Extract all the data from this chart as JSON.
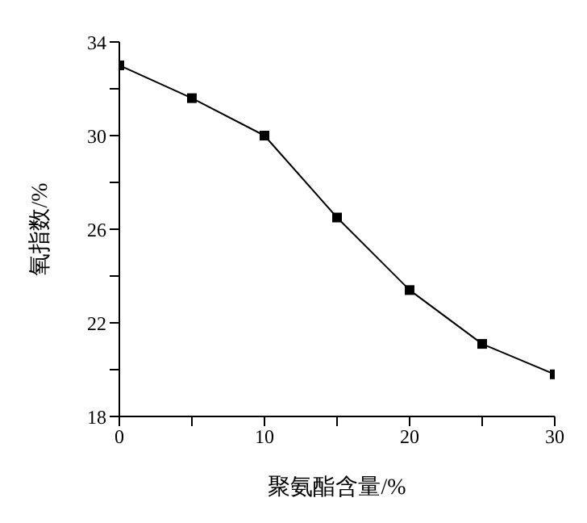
{
  "chart_data": {
    "type": "line",
    "xlabel": "聚氨酯含量/%",
    "ylabel": "氧指数/%",
    "x": [
      0,
      5,
      10,
      15,
      20,
      25,
      30
    ],
    "series": [
      {
        "color": "#000000",
        "values": [
          33.0,
          31.6,
          30.0,
          26.5,
          23.4,
          21.1,
          19.8
        ]
      }
    ],
    "xlim": [
      0,
      30
    ],
    "xticks": [
      0,
      {
        "value": 5,
        "label": null
      },
      10,
      {
        "value": 15,
        "label": null
      },
      20,
      {
        "value": 25,
        "label": null
      },
      30
    ],
    "ylim": [
      18,
      34
    ],
    "yticks": [
      18,
      {
        "value": 20,
        "label": null
      },
      22,
      {
        "value": 24,
        "label": null
      },
      26,
      {
        "value": 28,
        "label": null
      },
      30,
      {
        "value": 32,
        "label": null
      },
      34
    ],
    "marker": "square",
    "line_style": "solid",
    "grid": false,
    "legend": false
  }
}
